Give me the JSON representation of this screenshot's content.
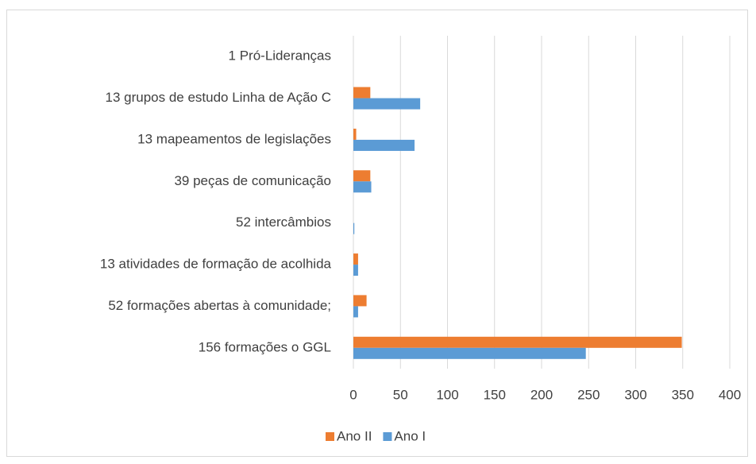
{
  "chart_data": {
    "type": "bar",
    "orientation": "horizontal",
    "categories": [
      "1 Pró-Lideranças",
      "13 grupos de estudo Linha de Ação C",
      "13 mapeamentos de legislações",
      "39 peças de comunicação",
      "52 intercâmbios",
      "13 atividades de formação de acolhida",
      "52 formações abertas à comunidade;",
      "156 formações o GGL"
    ],
    "series": [
      {
        "name": "Ano II",
        "color": "#ed7d31",
        "values": [
          0,
          18,
          3,
          18,
          0,
          5,
          14,
          349
        ]
      },
      {
        "name": "Ano I",
        "color": "#5b9bd5",
        "values": [
          0,
          71,
          65,
          19,
          1,
          5,
          5,
          247
        ]
      }
    ],
    "xlim": [
      0,
      400
    ],
    "xticks": [
      0,
      50,
      100,
      150,
      200,
      250,
      300,
      350,
      400
    ],
    "grid": true,
    "legend": "bottom"
  }
}
